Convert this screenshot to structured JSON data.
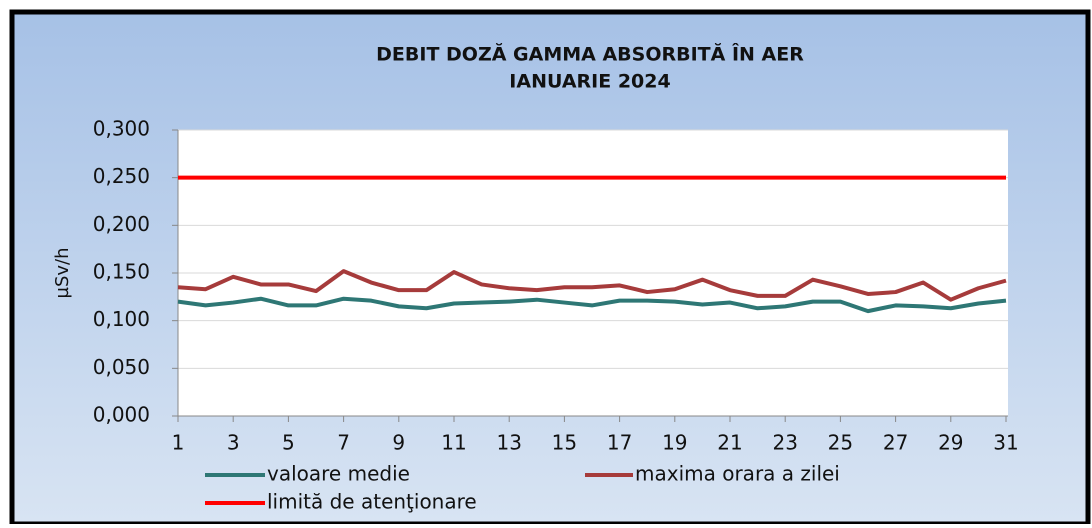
{
  "chart_data": {
    "type": "line",
    "title": "DEBIT DOZĂ GAMMA ABSORBITĂ ÎN AER",
    "subtitle": "IANUARIE 2024",
    "y_label": "µSv/h",
    "x": [
      1,
      2,
      3,
      4,
      5,
      6,
      7,
      8,
      9,
      10,
      11,
      12,
      13,
      14,
      15,
      16,
      17,
      18,
      19,
      20,
      21,
      22,
      23,
      24,
      25,
      26,
      27,
      28,
      29,
      30,
      31
    ],
    "series": [
      {
        "name": "valoare medie",
        "color": "#2e7775",
        "values": [
          0.12,
          0.116,
          0.119,
          0.123,
          0.116,
          0.116,
          0.123,
          0.121,
          0.115,
          0.113,
          0.118,
          0.119,
          0.12,
          0.122,
          0.119,
          0.116,
          0.121,
          0.121,
          0.12,
          0.117,
          0.119,
          0.113,
          0.115,
          0.12,
          0.12,
          0.11,
          0.116,
          0.115,
          0.113,
          0.118,
          0.121
        ]
      },
      {
        "name": "maxima orara a zilei",
        "color": "#a63b3b",
        "values": [
          0.135,
          0.133,
          0.146,
          0.138,
          0.138,
          0.131,
          0.152,
          0.14,
          0.132,
          0.132,
          0.151,
          0.138,
          0.134,
          0.132,
          0.135,
          0.135,
          0.137,
          0.13,
          0.133,
          0.143,
          0.132,
          0.126,
          0.126,
          0.143,
          0.136,
          0.128,
          0.13,
          0.14,
          0.122,
          0.134,
          0.142
        ]
      },
      {
        "name": "limită de atenţionare",
        "color": "#ff0000",
        "values": [
          0.25,
          0.25,
          0.25,
          0.25,
          0.25,
          0.25,
          0.25,
          0.25,
          0.25,
          0.25,
          0.25,
          0.25,
          0.25,
          0.25,
          0.25,
          0.25,
          0.25,
          0.25,
          0.25,
          0.25,
          0.25,
          0.25,
          0.25,
          0.25,
          0.25,
          0.25,
          0.25,
          0.25,
          0.25,
          0.25,
          0.25
        ]
      }
    ],
    "xlim": [
      1,
      31
    ],
    "xticks": [
      1,
      3,
      5,
      7,
      9,
      11,
      13,
      15,
      17,
      19,
      21,
      23,
      25,
      27,
      29,
      31
    ],
    "ylim": [
      0,
      0.3
    ],
    "yticks": [
      {
        "value": 0,
        "label": "0,000"
      },
      {
        "value": 0.05,
        "label": "0,050"
      },
      {
        "value": 0.1,
        "label": "0,100"
      },
      {
        "value": 0.15,
        "label": "0,150"
      },
      {
        "value": 0.2,
        "label": "0,200"
      },
      {
        "value": 0.25,
        "label": "0,250"
      },
      {
        "value": 0.3,
        "label": "0,300"
      }
    ],
    "grid": true,
    "legend": "bottom"
  }
}
